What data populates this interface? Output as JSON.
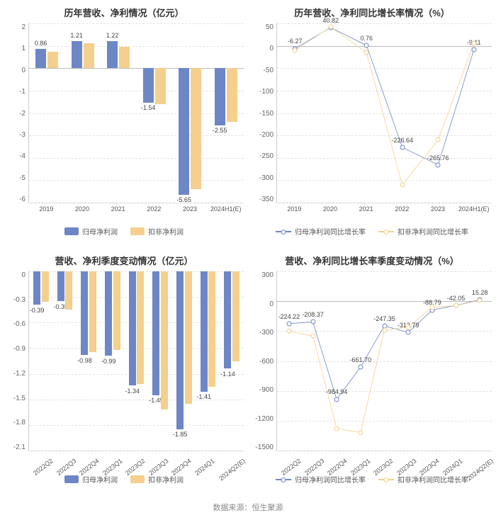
{
  "source_label": "数据来源：恒生聚源",
  "colors": {
    "series_a": "#6d86c6",
    "series_b": "#f4cf8e",
    "grid": "#e4e4e4",
    "axis": "#cccccc",
    "text": "#555555",
    "bg": "#ffffff"
  },
  "charts": [
    {
      "id": "c1",
      "title": "历年营收、净利情况（亿元）",
      "type": "bar",
      "ylim": [
        -6,
        2
      ],
      "ystep": 1,
      "categories": [
        "2019",
        "2020",
        "2021",
        "2022",
        "2023",
        "2024H1(E)"
      ],
      "rotate_x": false,
      "series": [
        {
          "name": "归母净利润",
          "color": "#6d86c6",
          "values": [
            0.86,
            1.21,
            1.22,
            -1.54,
            -5.65,
            -2.55
          ],
          "labels": [
            "0.86",
            "1.21",
            "1.22",
            "-1.54",
            "-5.65",
            "-2.55"
          ],
          "show_label": [
            true,
            true,
            true,
            true,
            true,
            true
          ]
        },
        {
          "name": "扣非净利润",
          "color": "#f4cf8e",
          "values": [
            0.75,
            1.1,
            0.95,
            -1.6,
            -5.4,
            -2.4
          ],
          "labels": [
            "",
            "",
            "",
            "",
            "",
            ""
          ],
          "show_label": [
            false,
            false,
            false,
            false,
            false,
            false
          ]
        }
      ],
      "legend": [
        {
          "name": "归母净利润",
          "color": "#6d86c6",
          "kind": "bar"
        },
        {
          "name": "扣非净利润",
          "color": "#f4cf8e",
          "kind": "bar"
        }
      ]
    },
    {
      "id": "c2",
      "title": "历年营收、净利同比增长率情况（%）",
      "type": "line",
      "ylim": [
        -350,
        50
      ],
      "ystep": 50,
      "categories": [
        "2019",
        "2020",
        "2021",
        "2022",
        "2023",
        "2024H1(E)"
      ],
      "rotate_x": false,
      "series": [
        {
          "name": "归母净利润同比增长率",
          "color": "#6d86c6",
          "values": [
            -6.27,
            40.82,
            0.76,
            -226.64,
            -265.76,
            -9.11
          ],
          "labels": [
            "-6.27",
            "40.82",
            "0.76",
            "-226.64",
            "-265.76",
            "-9.11"
          ],
          "show_label": [
            true,
            true,
            true,
            true,
            true,
            true
          ]
        },
        {
          "name": "扣非净利润同比增长率",
          "color": "#f4cf8e",
          "values": [
            -10,
            42,
            -15,
            -310,
            -210,
            5
          ],
          "labels": [
            "",
            "",
            "",
            "",
            "",
            ""
          ],
          "show_label": [
            false,
            false,
            false,
            false,
            false,
            false
          ]
        }
      ],
      "legend": [
        {
          "name": "归母净利润同比增长率",
          "color": "#6d86c6",
          "kind": "line"
        },
        {
          "name": "扣非净利润同比增长率",
          "color": "#f4cf8e",
          "kind": "line"
        }
      ]
    },
    {
      "id": "c3",
      "title": "营收、净利季度变动情况（亿元）",
      "type": "bar",
      "ylim": [
        -2.1,
        0
      ],
      "ystep": 0.3,
      "categories": [
        "2022Q2",
        "2022Q3",
        "2022Q4",
        "2023Q1",
        "2023Q2",
        "2023Q3",
        "2023Q4",
        "2024Q1",
        "2024Q2(E)"
      ],
      "rotate_x": true,
      "series": [
        {
          "name": "归母净利润",
          "color": "#6d86c6",
          "values": [
            -0.39,
            -0.35,
            -0.98,
            -0.99,
            -1.34,
            -1.45,
            -1.85,
            -1.41,
            -1.14
          ],
          "labels": [
            "-0.39",
            "-0.35",
            "-0.98",
            "-0.99",
            "-1.34",
            "-1.45",
            "-1.85",
            "-1.41",
            "-1.14"
          ],
          "show_label": [
            true,
            true,
            true,
            true,
            true,
            true,
            true,
            true,
            true
          ]
        },
        {
          "name": "扣非净利润",
          "color": "#f4cf8e",
          "values": [
            -0.36,
            -0.45,
            -0.95,
            -0.92,
            -1.32,
            -1.62,
            -1.55,
            -1.35,
            -1.05
          ],
          "labels": [
            "",
            "",
            "",
            "",
            "",
            "",
            "",
            "",
            ""
          ],
          "show_label": [
            false,
            false,
            false,
            false,
            false,
            false,
            false,
            false,
            false
          ]
        }
      ],
      "legend": [
        {
          "name": "归母净利润",
          "color": "#6d86c6",
          "kind": "bar"
        },
        {
          "name": "扣非净利润",
          "color": "#f4cf8e",
          "kind": "bar"
        }
      ]
    },
    {
      "id": "c4",
      "title": "营收、净利同比增长率季度变动情况（%）",
      "type": "line",
      "ylim": [
        -1500,
        300
      ],
      "ystep": 300,
      "categories": [
        "2022Q2",
        "2022Q3",
        "2022Q4",
        "2023Q1",
        "2023Q2",
        "2023Q3",
        "2023Q4",
        "2024Q1",
        "2024Q2(E)"
      ],
      "rotate_x": true,
      "series": [
        {
          "name": "归母净利润同比增长率",
          "color": "#6d86c6",
          "values": [
            -224.22,
            -208.37,
            -984.94,
            -661.7,
            -247.35,
            -313.79,
            -88.79,
            -42.05,
            15.28
          ],
          "labels": [
            "-224.22",
            "-208.37",
            "-984.94",
            "-661.70",
            "-247.35",
            "-313.79",
            "-88.79",
            "-42.05",
            "15.28"
          ],
          "show_label": [
            true,
            true,
            true,
            true,
            true,
            true,
            true,
            true,
            true
          ]
        },
        {
          "name": "扣非净利润同比增长率",
          "color": "#f4cf8e",
          "values": [
            -300,
            -350,
            -1280,
            -1320,
            -290,
            -260,
            -60,
            -45,
            10
          ],
          "labels": [
            "",
            "",
            "",
            "",
            "",
            "",
            "",
            "",
            ""
          ],
          "show_label": [
            false,
            false,
            false,
            false,
            false,
            false,
            false,
            false,
            false
          ]
        }
      ],
      "legend": [
        {
          "name": "归母净利润同比增长率",
          "color": "#6d86c6",
          "kind": "line"
        },
        {
          "name": "扣非净利润同比增长率",
          "color": "#f4cf8e",
          "kind": "line"
        }
      ]
    }
  ]
}
